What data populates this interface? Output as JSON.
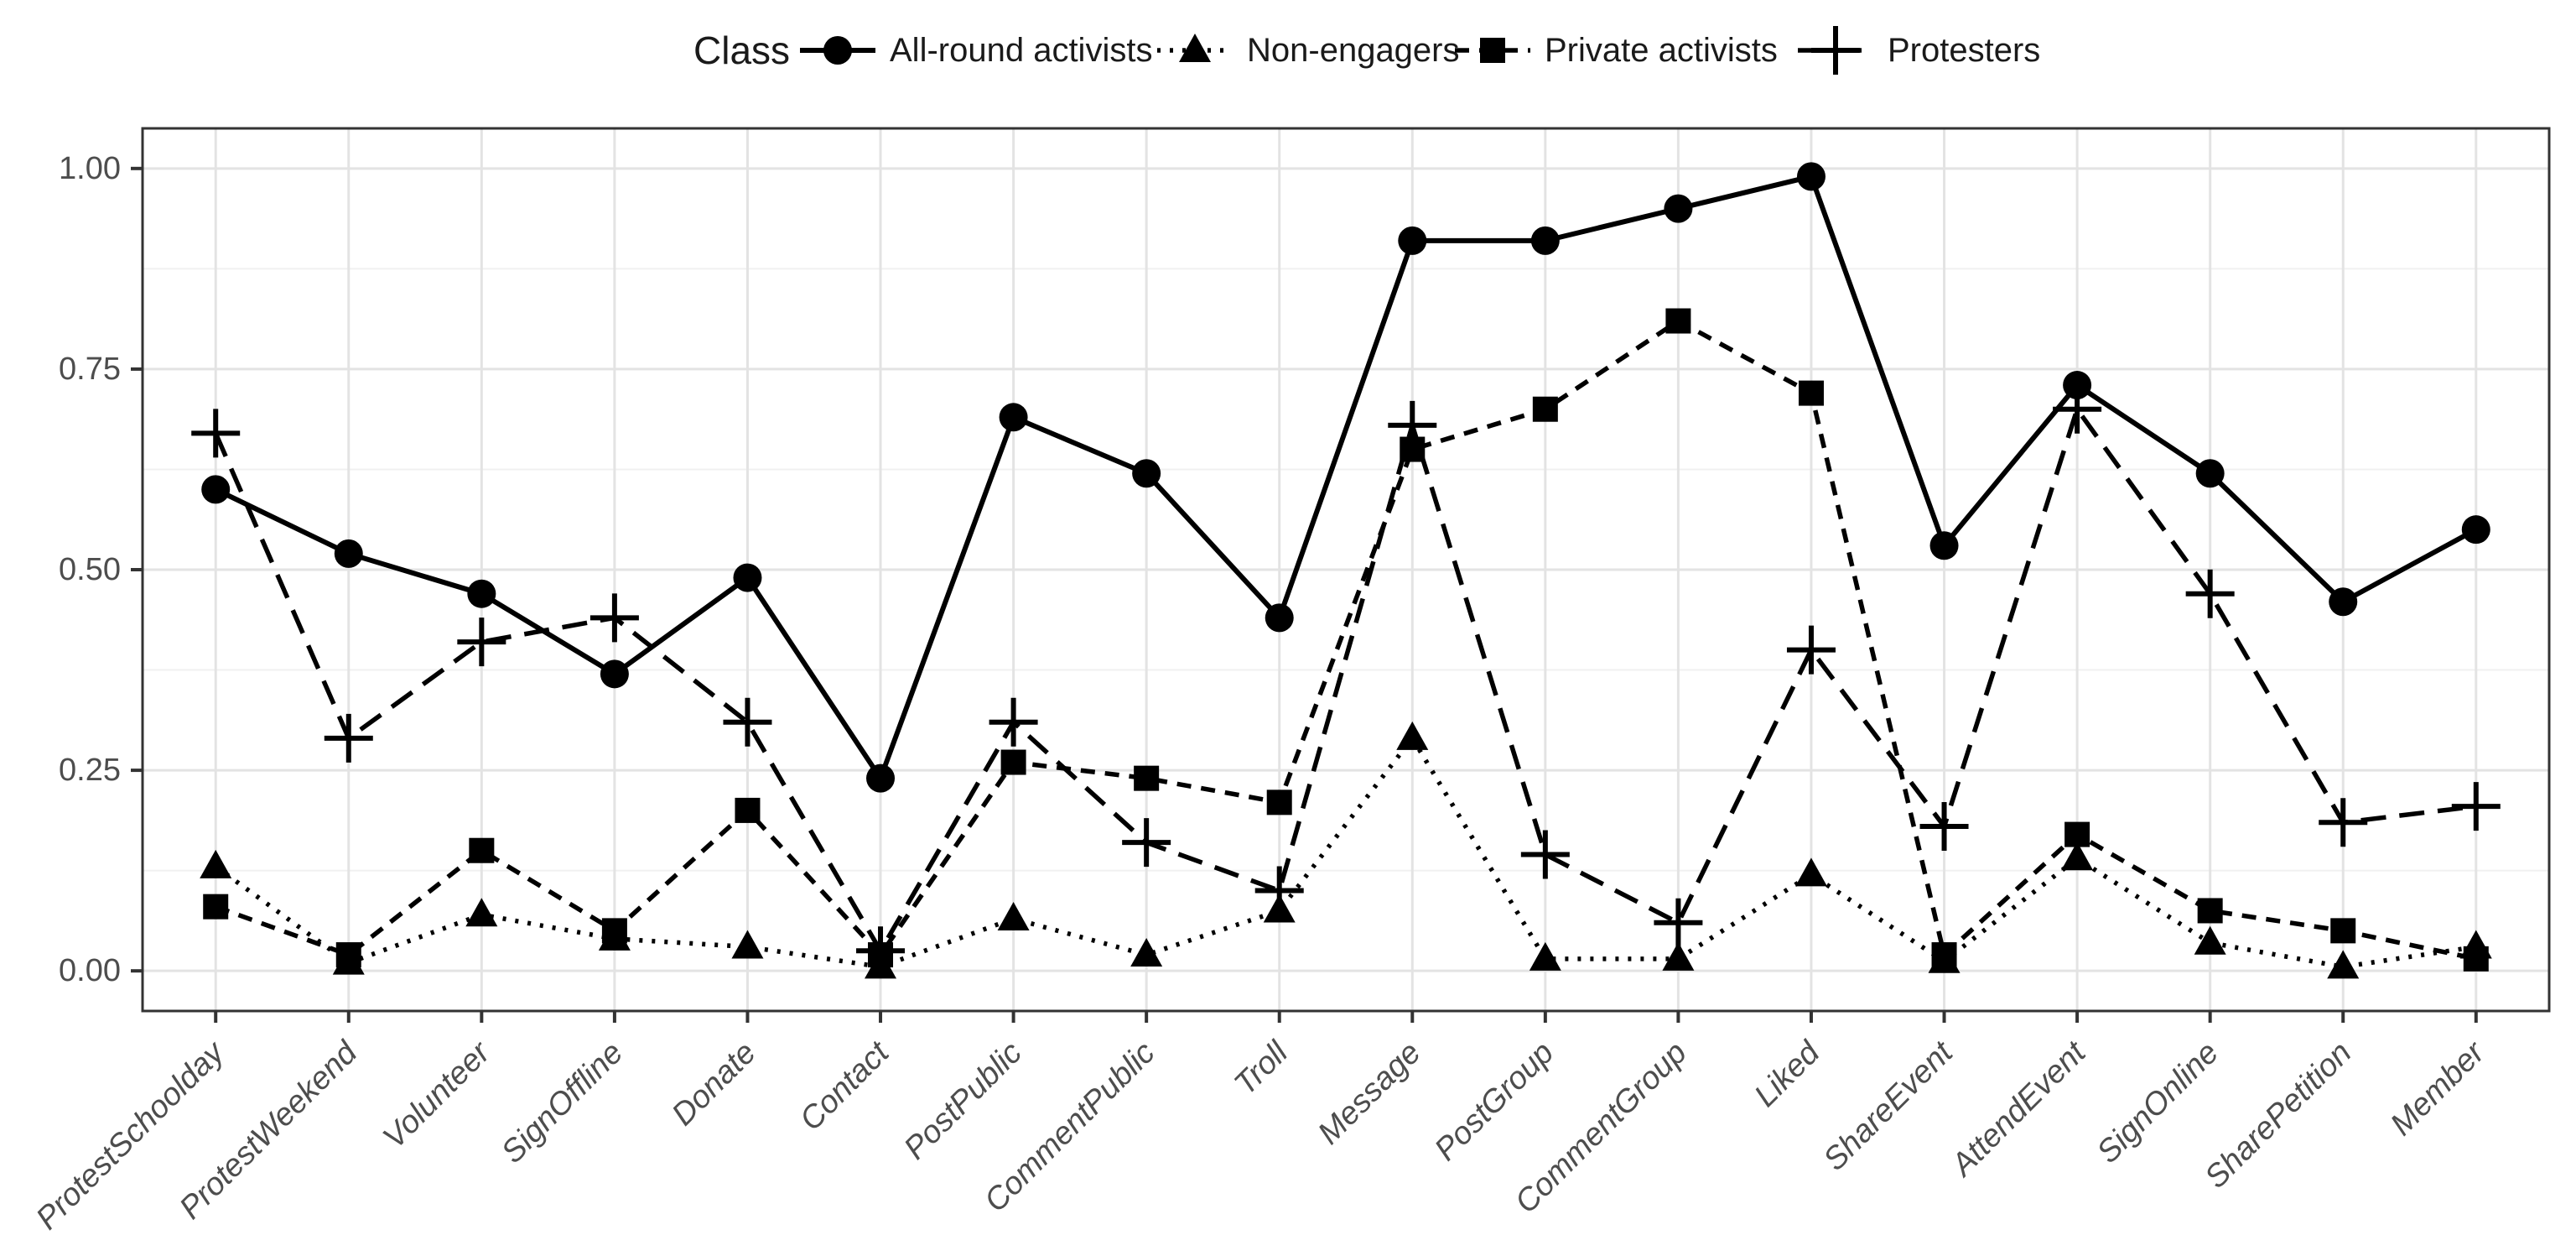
{
  "legend": {
    "title": "Class",
    "items": [
      {
        "label": "All-round activists",
        "marker": "circle",
        "linestyle": "solid"
      },
      {
        "label": "Non-engagers",
        "marker": "triangle",
        "linestyle": "dotted"
      },
      {
        "label": "Private activists",
        "marker": "square",
        "linestyle": "dashed"
      },
      {
        "label": "Protesters",
        "marker": "plus",
        "linestyle": "longdash"
      }
    ]
  },
  "axes": {
    "y_tick_labels": [
      "0.00",
      "0.25",
      "0.50",
      "0.75",
      "1.00"
    ],
    "y_tick_values": [
      0,
      0.25,
      0.5,
      0.75,
      1.0
    ],
    "y_minor_values": [
      0.125,
      0.375,
      0.625,
      0.875
    ]
  },
  "chart_data": {
    "type": "line",
    "title": "",
    "xlabel": "",
    "ylabel": "",
    "ylim": [
      0,
      1
    ],
    "grid": "major-and-minor",
    "legend_position": "top-center",
    "legend_title": "Class",
    "categories": [
      "ProtestSchoolday",
      "ProtestWeekend",
      "Volunteer",
      "SignOffline",
      "Donate",
      "Contact",
      "PostPublic",
      "CommentPublic",
      "Troll",
      "Message",
      "PostGroup",
      "CommentGroup",
      "Liked",
      "ShareEvent",
      "AttendEvent",
      "SignOnline",
      "SharePetition",
      "Member"
    ],
    "series": [
      {
        "name": "All-round activists",
        "marker": "circle",
        "linestyle": "solid",
        "values": [
          0.6,
          0.52,
          0.47,
          0.37,
          0.49,
          0.24,
          0.69,
          0.62,
          0.44,
          0.91,
          0.91,
          0.95,
          0.99,
          0.53,
          0.73,
          0.62,
          0.46,
          0.55
        ]
      },
      {
        "name": "Non-engagers",
        "marker": "triangle",
        "linestyle": "dotted",
        "values": [
          0.13,
          0.01,
          0.07,
          0.04,
          0.03,
          0.005,
          0.065,
          0.02,
          0.075,
          0.29,
          0.015,
          0.015,
          0.12,
          0.012,
          0.14,
          0.035,
          0.005,
          0.03
        ]
      },
      {
        "name": "Private activists",
        "marker": "square",
        "linestyle": "dashed",
        "values": [
          0.08,
          0.02,
          0.15,
          0.05,
          0.2,
          0.02,
          0.26,
          0.24,
          0.21,
          0.65,
          0.7,
          0.81,
          0.72,
          0.02,
          0.17,
          0.075,
          0.05,
          0.015
        ]
      },
      {
        "name": "Protesters",
        "marker": "plus",
        "linestyle": "longdash",
        "values": [
          0.67,
          0.29,
          0.41,
          0.44,
          0.31,
          0.025,
          0.31,
          0.16,
          0.1,
          0.68,
          0.145,
          0.06,
          0.4,
          0.18,
          0.7,
          0.47,
          0.185,
          0.205
        ]
      }
    ]
  },
  "colors": {
    "series": "#000000",
    "panel_border": "#333333",
    "tick_mark": "#333333",
    "grid_major": "#e3e3e3",
    "grid_minor": "#f0f0f0",
    "axis_text": "#4d4d4d",
    "legend_text": "#1a1a1a",
    "background": "#ffffff"
  }
}
